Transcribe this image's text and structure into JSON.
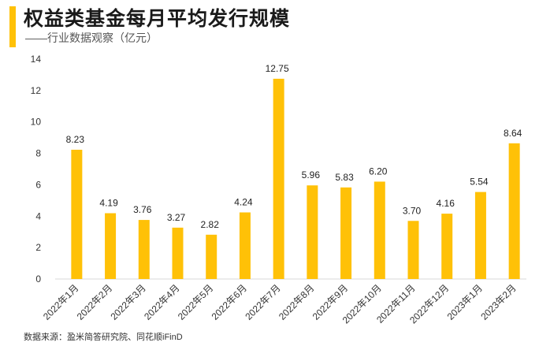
{
  "header": {
    "title": "权益类基金每月平均发行规模",
    "subtitle": "——行业数据观察（亿元）"
  },
  "footer": {
    "source": "数据来源：盈米简答研究院、同花顺iFinD"
  },
  "colors": {
    "accent": "#FFC107",
    "bar": "#FFC107"
  },
  "chart_data": {
    "type": "bar",
    "title": "权益类基金每月平均发行规模",
    "ylabel": "亿元",
    "xlabel": "",
    "ylim": [
      0,
      14
    ],
    "yticks": [
      0,
      2,
      4,
      6,
      8,
      10,
      12,
      14
    ],
    "grid": false,
    "categories": [
      "2022年1月",
      "2022年2月",
      "2022年3月",
      "2022年4月",
      "2022年5月",
      "2022年6月",
      "2022年7月",
      "2022年8月",
      "2022年9月",
      "2022年10月",
      "2022年11月",
      "2022年12月",
      "2023年1月",
      "2023年2月"
    ],
    "values": [
      8.23,
      4.19,
      3.76,
      3.27,
      2.82,
      4.24,
      12.75,
      5.96,
      5.83,
      6.2,
      3.7,
      4.16,
      5.54,
      8.64
    ],
    "value_labels": [
      "8.23",
      "4.19",
      "3.76",
      "3.27",
      "2.82",
      "4.24",
      "12.75",
      "5.96",
      "5.83",
      "6.20",
      "3.70",
      "4.16",
      "5.54",
      "8.64"
    ]
  }
}
